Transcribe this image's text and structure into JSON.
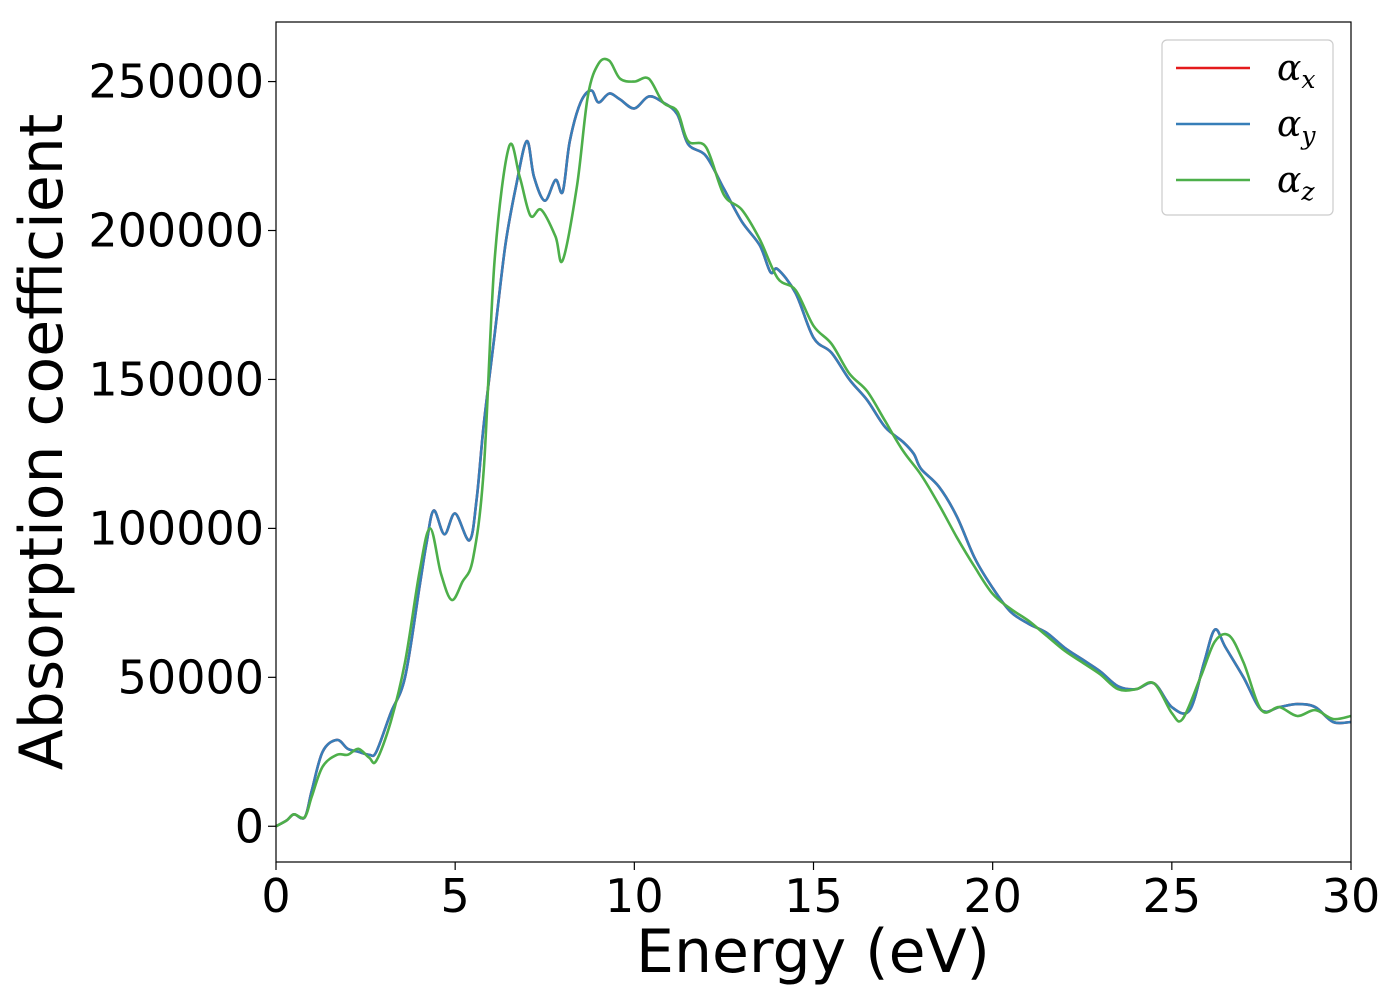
{
  "chart_data": {
    "type": "line",
    "title": "",
    "xlabel": "Energy (eV)",
    "ylabel": "Absorption coefficient",
    "xlim": [
      0,
      30
    ],
    "ylim": [
      -12000,
      270000
    ],
    "xticks": [
      0,
      5,
      10,
      15,
      20,
      25,
      30
    ],
    "yticks": [
      0,
      50000,
      100000,
      150000,
      200000,
      250000
    ],
    "xtick_labels": [
      "0",
      "5",
      "10",
      "15",
      "20",
      "25",
      "30"
    ],
    "ytick_labels": [
      "0",
      "50000",
      "100000",
      "150000",
      "200000",
      "250000"
    ],
    "grid": false,
    "legend": {
      "position": "top-right",
      "entries": [
        {
          "symbol": "α",
          "subscript": "x",
          "color": "#e41a1c"
        },
        {
          "symbol": "α",
          "subscript": "y",
          "color": "#377eb8"
        },
        {
          "symbol": "α",
          "subscript": "z",
          "color": "#4daf4a"
        }
      ]
    },
    "series": [
      {
        "legend_index": 0,
        "color": "#e41a1c",
        "x": [
          0,
          0.3,
          0.5,
          0.8,
          1.0,
          1.3,
          1.7,
          2.0,
          2.3,
          2.6,
          2.8,
          3.2,
          3.6,
          4.0,
          4.2,
          4.4,
          4.7,
          5.0,
          5.4,
          5.6,
          5.8,
          6.1,
          6.4,
          6.7,
          7.0,
          7.2,
          7.5,
          7.8,
          8.0,
          8.2,
          8.5,
          8.8,
          9.0,
          9.3,
          9.6,
          10.0,
          10.4,
          10.8,
          11.2,
          11.5,
          12.0,
          12.5,
          13.0,
          13.5,
          13.8,
          14.0,
          14.5,
          15.0,
          15.5,
          16.0,
          16.5,
          17.0,
          17.5,
          17.8,
          18.0,
          18.5,
          19.0,
          19.5,
          20.0,
          20.5,
          21.0,
          21.5,
          22.0,
          22.5,
          23.0,
          23.5,
          24.0,
          24.5,
          25.0,
          25.5,
          25.9,
          26.2,
          26.5,
          27.0,
          27.5,
          28.0,
          28.5,
          29.0,
          29.5,
          30.0
        ],
        "y": [
          0,
          2000,
          4000,
          3000,
          12000,
          25000,
          29000,
          26000,
          25000,
          24000,
          25000,
          38000,
          50000,
          80000,
          95000,
          106000,
          98000,
          105000,
          96000,
          110000,
          135000,
          165000,
          195000,
          215000,
          230000,
          218000,
          210000,
          217000,
          213000,
          230000,
          243000,
          247000,
          243000,
          246000,
          244000,
          241000,
          245000,
          243000,
          239000,
          229000,
          225000,
          214000,
          203000,
          195000,
          186000,
          187000,
          179000,
          164000,
          159000,
          150000,
          143000,
          134000,
          129000,
          125000,
          120000,
          114000,
          104000,
          90000,
          80000,
          72000,
          68000,
          65000,
          60000,
          56000,
          52000,
          47000,
          46000,
          48000,
          40000,
          39000,
          55000,
          66000,
          60000,
          50000,
          39000,
          40000,
          41000,
          40000,
          35000,
          35000
        ]
      },
      {
        "legend_index": 1,
        "color": "#377eb8",
        "x": [
          0,
          0.3,
          0.5,
          0.8,
          1.0,
          1.3,
          1.7,
          2.0,
          2.3,
          2.6,
          2.8,
          3.2,
          3.6,
          4.0,
          4.2,
          4.4,
          4.7,
          5.0,
          5.4,
          5.6,
          5.8,
          6.1,
          6.4,
          6.7,
          7.0,
          7.2,
          7.5,
          7.8,
          8.0,
          8.2,
          8.5,
          8.8,
          9.0,
          9.3,
          9.6,
          10.0,
          10.4,
          10.8,
          11.2,
          11.5,
          12.0,
          12.5,
          13.0,
          13.5,
          13.8,
          14.0,
          14.5,
          15.0,
          15.5,
          16.0,
          16.5,
          17.0,
          17.5,
          17.8,
          18.0,
          18.5,
          19.0,
          19.5,
          20.0,
          20.5,
          21.0,
          21.5,
          22.0,
          22.5,
          23.0,
          23.5,
          24.0,
          24.5,
          25.0,
          25.5,
          25.9,
          26.2,
          26.5,
          27.0,
          27.5,
          28.0,
          28.5,
          29.0,
          29.5,
          30.0
        ],
        "y": [
          0,
          2000,
          4000,
          3000,
          12000,
          25000,
          29000,
          26000,
          25000,
          24000,
          25000,
          38000,
          50000,
          80000,
          95000,
          106000,
          98000,
          105000,
          96000,
          110000,
          135000,
          165000,
          195000,
          215000,
          230000,
          218000,
          210000,
          217000,
          213000,
          230000,
          243000,
          247000,
          243000,
          246000,
          244000,
          241000,
          245000,
          243000,
          239000,
          229000,
          225000,
          214000,
          203000,
          195000,
          186000,
          187000,
          179000,
          164000,
          159000,
          150000,
          143000,
          134000,
          129000,
          125000,
          120000,
          114000,
          104000,
          90000,
          80000,
          72000,
          68000,
          65000,
          60000,
          56000,
          52000,
          47000,
          46000,
          48000,
          40000,
          39000,
          55000,
          66000,
          60000,
          50000,
          39000,
          40000,
          41000,
          40000,
          35000,
          35000
        ]
      },
      {
        "legend_index": 2,
        "color": "#4daf4a",
        "x": [
          0,
          0.3,
          0.5,
          0.8,
          1.0,
          1.3,
          1.7,
          2.0,
          2.3,
          2.6,
          2.8,
          3.2,
          3.6,
          4.0,
          4.3,
          4.6,
          4.9,
          5.2,
          5.5,
          5.8,
          6.1,
          6.5,
          6.8,
          7.1,
          7.4,
          7.8,
          8.0,
          8.4,
          8.7,
          9.0,
          9.3,
          9.6,
          10.0,
          10.4,
          10.8,
          11.2,
          11.5,
          12.0,
          12.5,
          13.0,
          13.5,
          14.0,
          14.5,
          15.0,
          15.5,
          16.0,
          16.5,
          17.0,
          17.5,
          18.0,
          18.5,
          19.0,
          19.5,
          20.0,
          20.5,
          21.0,
          21.5,
          22.0,
          22.5,
          23.0,
          23.5,
          24.0,
          24.5,
          25.0,
          25.3,
          25.8,
          26.2,
          26.6,
          27.0,
          27.5,
          28.0,
          28.5,
          29.0,
          29.5,
          30.0
        ],
        "y": [
          0,
          2000,
          4000,
          3000,
          10000,
          20000,
          24000,
          24000,
          26000,
          23000,
          22000,
          35000,
          55000,
          85000,
          100000,
          85000,
          76000,
          82000,
          90000,
          120000,
          190000,
          228000,
          218000,
          205000,
          207000,
          198000,
          190000,
          215000,
          245000,
          256000,
          257000,
          251000,
          250000,
          251000,
          243000,
          240000,
          230000,
          228000,
          212000,
          207000,
          197000,
          184000,
          180000,
          168000,
          162000,
          152000,
          146000,
          136000,
          126000,
          118000,
          108000,
          97000,
          87000,
          78000,
          73000,
          69000,
          64000,
          59000,
          55000,
          51000,
          46000,
          46000,
          48000,
          38000,
          36000,
          50000,
          62000,
          64000,
          55000,
          39000,
          40000,
          37000,
          39000,
          36000,
          37000
        ]
      }
    ]
  }
}
